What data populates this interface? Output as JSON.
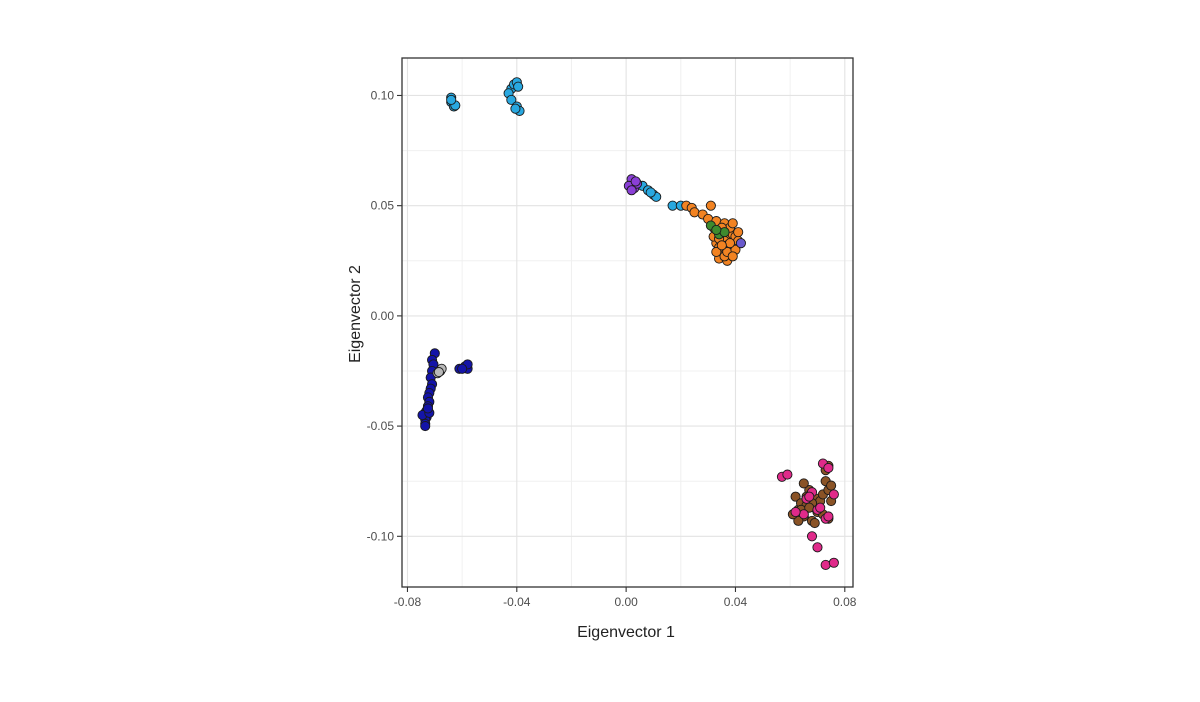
{
  "chart_data": {
    "type": "scatter",
    "title": "",
    "xlabel": "Eigenvector 1",
    "ylabel": "Eigenvector 2",
    "xlim": [
      -0.082,
      0.083
    ],
    "ylim": [
      -0.123,
      0.117
    ],
    "x_ticks": [
      -0.08,
      -0.04,
      0.0,
      0.04,
      0.08
    ],
    "x_tick_labels": [
      "-0.08",
      "-0.04",
      "0.00",
      "0.04",
      "0.08"
    ],
    "y_ticks": [
      -0.1,
      -0.05,
      0.0,
      0.05,
      0.1
    ],
    "y_tick_labels": [
      "-0.10",
      "-0.05",
      "0.00",
      "0.05",
      "0.10"
    ],
    "grid": true,
    "legend": "none",
    "series": [
      {
        "color": "#29a8e0",
        "points": [
          [
            -0.064,
            0.099
          ],
          [
            -0.064,
            0.097
          ],
          [
            -0.063,
            0.095
          ],
          [
            -0.0625,
            0.0955
          ],
          [
            -0.064,
            0.098
          ],
          [
            -0.042,
            0.103
          ],
          [
            -0.041,
            0.105
          ],
          [
            -0.04,
            0.106
          ],
          [
            -0.043,
            0.101
          ],
          [
            -0.0395,
            0.104
          ],
          [
            -0.042,
            0.098
          ],
          [
            -0.04,
            0.095
          ],
          [
            -0.039,
            0.093
          ],
          [
            -0.0405,
            0.094
          ],
          [
            0.006,
            0.059
          ],
          [
            0.008,
            0.057
          ],
          [
            0.01,
            0.055
          ],
          [
            0.011,
            0.054
          ],
          [
            0.009,
            0.056
          ],
          [
            0.017,
            0.05
          ],
          [
            0.02,
            0.05
          ]
        ]
      },
      {
        "color": "#8a3fd6",
        "points": [
          [
            0.002,
            0.062
          ],
          [
            0.003,
            0.058
          ],
          [
            0.001,
            0.059
          ],
          [
            0.004,
            0.06
          ],
          [
            0.002,
            0.057
          ],
          [
            0.0035,
            0.061
          ]
        ]
      },
      {
        "color": "#f28322",
        "points": [
          [
            0.022,
            0.05
          ],
          [
            0.024,
            0.049
          ],
          [
            0.025,
            0.047
          ],
          [
            0.028,
            0.046
          ],
          [
            0.031,
            0.05
          ],
          [
            0.03,
            0.044
          ],
          [
            0.032,
            0.04
          ],
          [
            0.033,
            0.043
          ],
          [
            0.034,
            0.038
          ],
          [
            0.035,
            0.036
          ],
          [
            0.036,
            0.042
          ],
          [
            0.037,
            0.039
          ],
          [
            0.038,
            0.035
          ],
          [
            0.039,
            0.037
          ],
          [
            0.04,
            0.033
          ],
          [
            0.036,
            0.03
          ],
          [
            0.035,
            0.028
          ],
          [
            0.034,
            0.026
          ],
          [
            0.037,
            0.025
          ],
          [
            0.038,
            0.028
          ],
          [
            0.039,
            0.031
          ],
          [
            0.04,
            0.036
          ],
          [
            0.041,
            0.034
          ],
          [
            0.033,
            0.033
          ],
          [
            0.032,
            0.036
          ],
          [
            0.034,
            0.031
          ],
          [
            0.036,
            0.034
          ],
          [
            0.037,
            0.032
          ],
          [
            0.038,
            0.04
          ],
          [
            0.039,
            0.042
          ],
          [
            0.035,
            0.04
          ],
          [
            0.041,
            0.038
          ],
          [
            0.036,
            0.027
          ],
          [
            0.037,
            0.029
          ],
          [
            0.04,
            0.03
          ],
          [
            0.034,
            0.035
          ],
          [
            0.038,
            0.033
          ],
          [
            0.039,
            0.027
          ],
          [
            0.033,
            0.029
          ],
          [
            0.035,
            0.032
          ]
        ]
      },
      {
        "color": "#3e8a2e",
        "points": [
          [
            0.031,
            0.041
          ],
          [
            0.034,
            0.037
          ],
          [
            0.036,
            0.038
          ],
          [
            0.033,
            0.039
          ]
        ]
      },
      {
        "color": "#6a5acd",
        "points": [
          [
            0.042,
            0.033
          ]
        ]
      },
      {
        "color": "#1414a8",
        "points": [
          [
            -0.07,
            -0.017
          ],
          [
            -0.071,
            -0.02
          ],
          [
            -0.0705,
            -0.022
          ],
          [
            -0.071,
            -0.025
          ],
          [
            -0.0715,
            -0.028
          ],
          [
            -0.071,
            -0.031
          ],
          [
            -0.0715,
            -0.033
          ],
          [
            -0.072,
            -0.035
          ],
          [
            -0.0725,
            -0.037
          ],
          [
            -0.072,
            -0.039
          ],
          [
            -0.0725,
            -0.041
          ],
          [
            -0.073,
            -0.043
          ],
          [
            -0.0735,
            -0.044
          ],
          [
            -0.073,
            -0.046
          ],
          [
            -0.0735,
            -0.047
          ],
          [
            -0.0735,
            -0.049
          ],
          [
            -0.0735,
            -0.05
          ],
          [
            -0.0745,
            -0.045
          ],
          [
            -0.072,
            -0.044
          ],
          [
            -0.0725,
            -0.042
          ],
          [
            -0.061,
            -0.024
          ],
          [
            -0.059,
            -0.023
          ],
          [
            -0.058,
            -0.024
          ],
          [
            -0.058,
            -0.022
          ],
          [
            -0.06,
            -0.024
          ]
        ]
      },
      {
        "color": "#b8b8b8",
        "points": [
          [
            -0.068,
            -0.025
          ],
          [
            -0.069,
            -0.026
          ],
          [
            -0.0675,
            -0.024
          ],
          [
            -0.0685,
            -0.0255
          ]
        ]
      },
      {
        "color": "#8a5326",
        "points": [
          [
            0.062,
            -0.082
          ],
          [
            0.063,
            -0.088
          ],
          [
            0.064,
            -0.085
          ],
          [
            0.065,
            -0.091
          ],
          [
            0.066,
            -0.086
          ],
          [
            0.067,
            -0.079
          ],
          [
            0.068,
            -0.093
          ],
          [
            0.069,
            -0.087
          ],
          [
            0.07,
            -0.083
          ],
          [
            0.071,
            -0.084
          ],
          [
            0.072,
            -0.081
          ],
          [
            0.073,
            -0.075
          ],
          [
            0.074,
            -0.079
          ],
          [
            0.075,
            -0.084
          ],
          [
            0.073,
            -0.07
          ],
          [
            0.074,
            -0.068
          ],
          [
            0.068,
            -0.085
          ],
          [
            0.066,
            -0.082
          ],
          [
            0.064,
            -0.088
          ],
          [
            0.07,
            -0.089
          ],
          [
            0.072,
            -0.09
          ],
          [
            0.074,
            -0.092
          ],
          [
            0.063,
            -0.093
          ],
          [
            0.065,
            -0.076
          ],
          [
            0.067,
            -0.087
          ],
          [
            0.069,
            -0.094
          ],
          [
            0.075,
            -0.077
          ],
          [
            0.061,
            -0.09
          ]
        ]
      },
      {
        "color": "#e02a8a",
        "points": [
          [
            0.057,
            -0.073
          ],
          [
            0.059,
            -0.072
          ],
          [
            0.066,
            -0.083
          ],
          [
            0.068,
            -0.08
          ],
          [
            0.07,
            -0.088
          ],
          [
            0.072,
            -0.067
          ],
          [
            0.074,
            -0.069
          ],
          [
            0.071,
            -0.087
          ],
          [
            0.073,
            -0.092
          ],
          [
            0.076,
            -0.081
          ],
          [
            0.068,
            -0.1
          ],
          [
            0.07,
            -0.105
          ],
          [
            0.073,
            -0.113
          ],
          [
            0.076,
            -0.112
          ],
          [
            0.065,
            -0.09
          ],
          [
            0.067,
            -0.082
          ],
          [
            0.062,
            -0.089
          ],
          [
            0.074,
            -0.091
          ]
        ]
      }
    ]
  }
}
